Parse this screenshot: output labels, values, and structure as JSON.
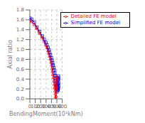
{
  "chart_data": {
    "type": "line",
    "xlabel": "BendingMoment(10¹kNm)",
    "ylabel": "Axial ratio",
    "xlim": [
      0,
      600
    ],
    "ylim": [
      0.0,
      1.8
    ],
    "xticks": [
      0,
      100,
      200,
      300,
      400,
      500,
      600
    ],
    "yticks": [
      {
        "value": 0,
        "label": "0.0"
      },
      0.2,
      0.4,
      0.6,
      0.8,
      {
        "value": 1,
        "label": "1.0"
      },
      1.2,
      1.4,
      1.6,
      1.8
    ],
    "grid": true,
    "legend": "upper right",
    "series": [
      {
        "name": "Simplified FE model",
        "color": "#0000ff",
        "marker": "square",
        "x": [
          0,
          30,
          80,
          130,
          180,
          230,
          265,
          295,
          315,
          335,
          350,
          365,
          380,
          395,
          410,
          420,
          430,
          440,
          450,
          460,
          468,
          475,
          482,
          488,
          493,
          498,
          503,
          507,
          512,
          517,
          521,
          524,
          527,
          529,
          530,
          529,
          526,
          522,
          516,
          510,
          504
        ],
        "values": [
          1.63,
          1.61,
          1.55,
          1.45,
          1.36,
          1.27,
          1.2,
          1.14,
          1.09,
          1.04,
          0.99,
          0.94,
          0.89,
          0.83,
          0.78,
          0.73,
          0.68,
          0.63,
          0.58,
          0.52,
          0.47,
          0.42,
          0.36,
          0.31,
          0.26,
          0.22,
          0.18,
          0.15,
          0.22,
          0.3,
          0.38,
          0.43,
          0.46,
          0.4,
          0.32,
          0.26,
          0.22,
          0.18,
          0.2,
          0.25,
          0.28
        ]
      },
      {
        "name": "Detailed FE model",
        "color": "#ff0000",
        "marker": "triangle",
        "x": [
          0,
          30,
          80,
          130,
          180,
          230,
          265,
          295,
          315,
          335,
          350,
          365,
          380,
          390,
          400,
          410,
          418,
          426,
          434,
          442,
          450,
          457,
          464,
          470,
          476,
          481,
          486,
          490,
          494,
          497,
          500,
          502,
          503,
          502,
          500,
          497,
          493,
          488,
          483
        ],
        "values": [
          1.59,
          1.57,
          1.51,
          1.43,
          1.33,
          1.24,
          1.17,
          1.1,
          1.05,
          0.98,
          0.93,
          0.87,
          0.81,
          0.75,
          0.69,
          0.62,
          0.56,
          0.5,
          0.44,
          0.37,
          0.3,
          0.23,
          0.17,
          0.11,
          0.05,
          0.0,
          0.06,
          0.14,
          0.23,
          0.32,
          0.38,
          0.43,
          0.45,
          0.4,
          0.33,
          0.26,
          0.2,
          0.22,
          0.27
        ]
      }
    ]
  }
}
